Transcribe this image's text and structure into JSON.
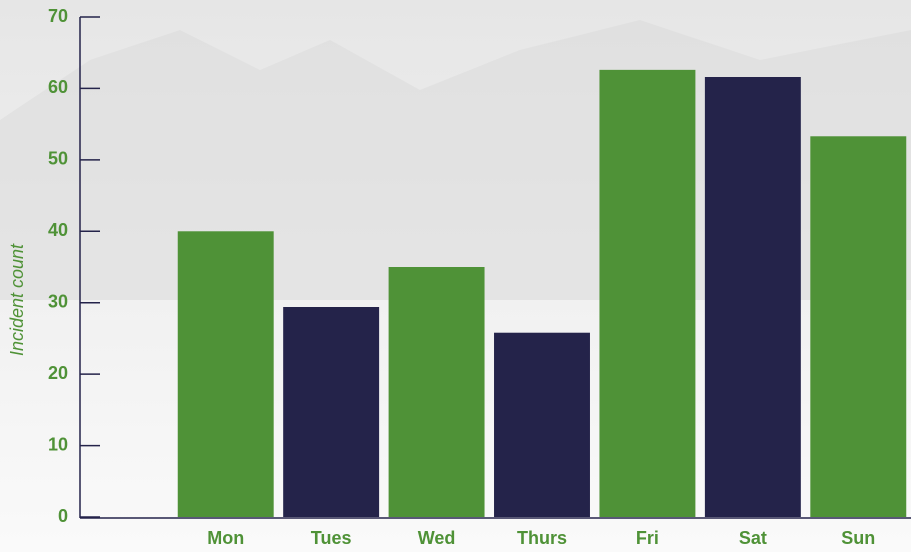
{
  "chart_data": {
    "type": "bar",
    "y_label": "Incident count",
    "categories": [
      "Mon",
      "Tues",
      "Wed",
      "Thurs",
      "Fri",
      "Sat",
      "Sun"
    ],
    "values": [
      40,
      29.4,
      35,
      25.8,
      62.6,
      61.6,
      53.3
    ],
    "colors": [
      "#4f9237",
      "#24234a",
      "#4f9237",
      "#24234a",
      "#4f9237",
      "#24234a",
      "#4f9237"
    ],
    "ylim": [
      0,
      70
    ],
    "yticks": [
      0,
      10,
      20,
      30,
      40,
      50,
      60,
      70
    ]
  }
}
